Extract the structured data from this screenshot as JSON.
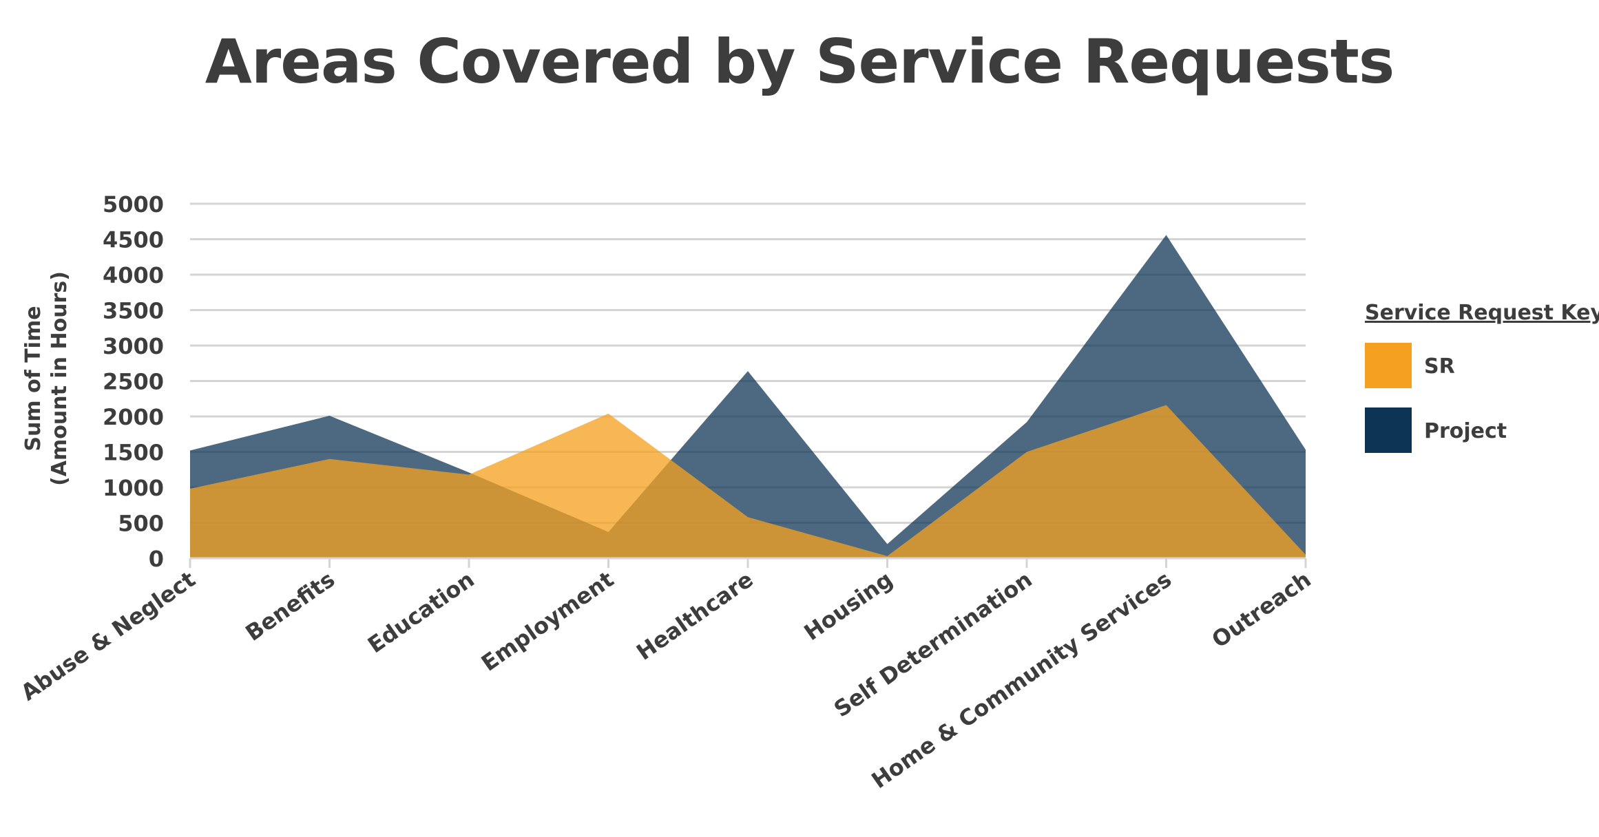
{
  "chart_data": {
    "type": "area",
    "title": "Areas Covered by Service Requests",
    "xlabel": "",
    "ylabel_line1": "Sum of Time",
    "ylabel_line2": "(Amount in Hours)",
    "categories": [
      "Abuse & Neglect",
      "Benefits",
      "Education",
      "Employment",
      "Healthcare",
      "Housing",
      "Self Determination",
      "Home & Community Services",
      "Outreach"
    ],
    "yticks": [
      0,
      500,
      1000,
      1500,
      2000,
      2500,
      3000,
      3500,
      4000,
      4500,
      5000
    ],
    "ylim": [
      0,
      5000
    ],
    "grid": true,
    "legend": {
      "title": "Service Request Key",
      "placement": "right"
    },
    "series": [
      {
        "name": "Project",
        "color": "#0e3455",
        "values": [
          1520,
          2010,
          1210,
          370,
          2640,
          200,
          1920,
          4560,
          1530
        ]
      },
      {
        "name": "SR",
        "color": "#f5a020",
        "values": [
          980,
          1400,
          1180,
          2040,
          580,
          30,
          1500,
          2160,
          50
        ]
      }
    ]
  }
}
